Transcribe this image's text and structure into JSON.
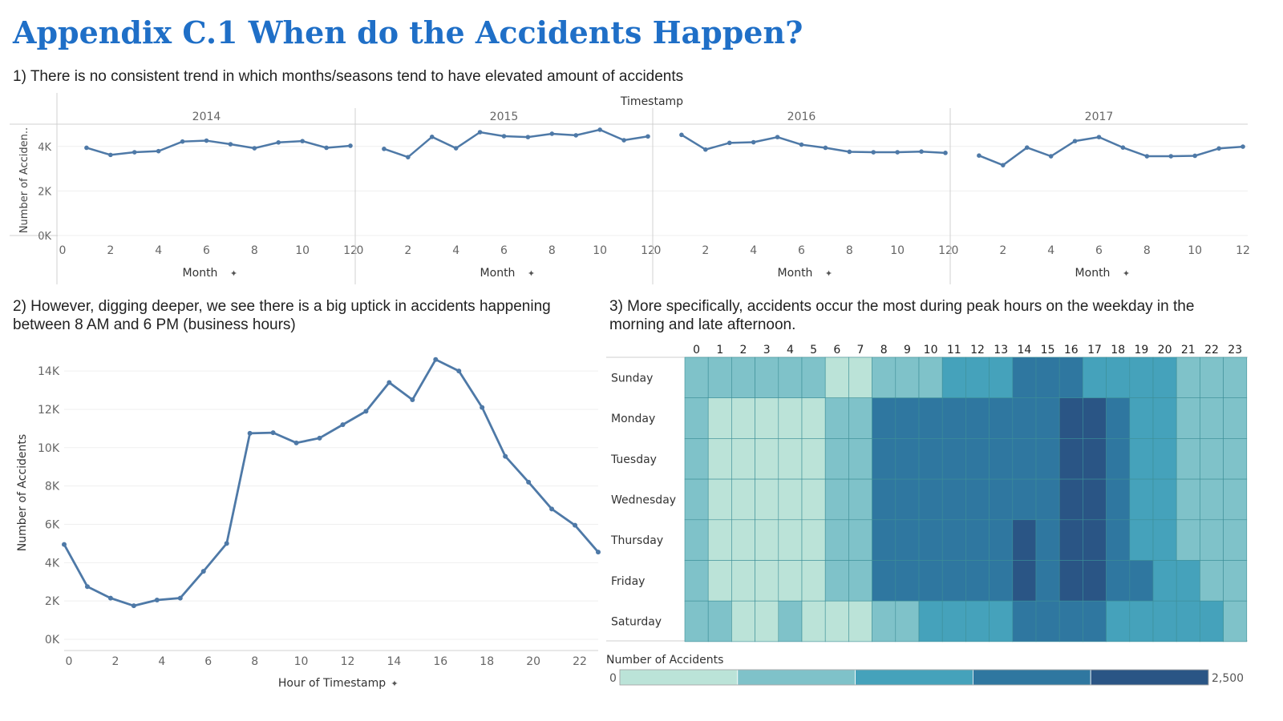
{
  "header": {
    "title": "Appendix C.1  When do the Accidents Happen?",
    "note1": "1) There is no consistent trend in which months/seasons tend to have elevated amount of accidents",
    "note2": "2) However, digging deeper, we see there is a big uptick in accidents happening between 8 AM and 6 PM (business hours)",
    "note3": "3) More specifically, accidents occur the most during peak hours on the weekday in the morning and late afternoon."
  },
  "colors": {
    "line": "#4e79a7",
    "title": "#1f6fc7",
    "heat": [
      "#bbe3d8",
      "#7fc2c9",
      "#45a2bb",
      "#2f77a0",
      "#2a5585"
    ]
  },
  "chart_data": [
    {
      "type": "line",
      "panel_header": "Timestamp",
      "ylabel": "Number of Acciden..",
      "xlabel": "Month",
      "pin": "📌",
      "yticks": [
        0,
        2000,
        4000
      ],
      "ytick_labels": [
        "0K",
        "2K",
        "4K"
      ],
      "xticks": [
        0,
        2,
        4,
        6,
        8,
        10,
        12
      ],
      "ylim": [
        0,
        5000
      ],
      "xlim": [
        0,
        12
      ],
      "grid": true,
      "series": [
        {
          "name": "2014",
          "x": [
            1,
            2,
            3,
            4,
            5,
            6,
            7,
            8,
            9,
            10,
            11,
            12
          ],
          "values": [
            3940,
            3620,
            3740,
            3790,
            4220,
            4260,
            4100,
            3920,
            4180,
            4240,
            3940,
            4030
          ]
        },
        {
          "name": "2015",
          "x": [
            1,
            2,
            3,
            4,
            5,
            6,
            7,
            8,
            9,
            10,
            11,
            12
          ],
          "values": [
            3890,
            3520,
            4430,
            3920,
            4640,
            4460,
            4420,
            4570,
            4500,
            4750,
            4280,
            4450
          ]
        },
        {
          "name": "2016",
          "x": [
            1,
            2,
            3,
            4,
            5,
            6,
            7,
            8,
            9,
            10,
            11,
            12
          ],
          "values": [
            4520,
            3860,
            4160,
            4190,
            4420,
            4080,
            3940,
            3760,
            3740,
            3740,
            3770,
            3710
          ]
        },
        {
          "name": "2017",
          "x": [
            1,
            2,
            3,
            4,
            5,
            6,
            7,
            8,
            9,
            10,
            11,
            12
          ],
          "values": [
            3590,
            3160,
            3950,
            3560,
            4240,
            4420,
            3950,
            3560,
            3560,
            3580,
            3910,
            3990
          ]
        }
      ]
    },
    {
      "type": "line",
      "xlabel": "Hour of Timestamp",
      "ylabel": "Number of Accidents",
      "pin": "📌",
      "x": [
        0,
        1,
        2,
        3,
        4,
        5,
        6,
        7,
        8,
        9,
        10,
        11,
        12,
        13,
        14,
        15,
        16,
        17,
        18,
        19,
        20,
        21,
        22,
        23
      ],
      "values": [
        4950,
        2750,
        2150,
        1750,
        2050,
        2150,
        3550,
        5000,
        10750,
        10780,
        10250,
        10500,
        11200,
        11900,
        13400,
        12500,
        14600,
        14000,
        12100,
        9550,
        8200,
        6800,
        5950,
        4550
      ],
      "xticks": [
        0,
        2,
        4,
        6,
        8,
        10,
        12,
        14,
        16,
        18,
        20,
        22
      ],
      "yticks": [
        0,
        2000,
        4000,
        6000,
        8000,
        10000,
        12000,
        14000
      ],
      "ytick_labels": [
        "0K",
        "2K",
        "4K",
        "6K",
        "8K",
        "10K",
        "12K",
        "14K"
      ],
      "xlim": [
        0,
        23
      ],
      "ylim": [
        0,
        14800
      ],
      "grid": true
    },
    {
      "type": "heatmap",
      "columns": [
        "0",
        "1",
        "2",
        "3",
        "4",
        "5",
        "6",
        "7",
        "8",
        "9",
        "10",
        "11",
        "12",
        "13",
        "14",
        "15",
        "16",
        "17",
        "18",
        "19",
        "20",
        "21",
        "22",
        "23"
      ],
      "rows": [
        "Sunday",
        "Monday",
        "Tuesday",
        "Wednesday",
        "Thursday",
        "Friday",
        "Saturday"
      ],
      "values": [
        [
          800,
          800,
          800,
          800,
          800,
          800,
          300,
          300,
          800,
          800,
          800,
          1300,
          1300,
          1300,
          1800,
          1800,
          1800,
          1300,
          1300,
          1300,
          1300,
          800,
          800,
          800
        ],
        [
          800,
          300,
          300,
          300,
          300,
          300,
          800,
          800,
          1800,
          1800,
          1800,
          1800,
          1800,
          1800,
          1800,
          1800,
          2300,
          2300,
          1800,
          1300,
          1300,
          800,
          800,
          800
        ],
        [
          800,
          300,
          300,
          300,
          300,
          300,
          800,
          800,
          1800,
          1800,
          1800,
          1800,
          1800,
          1800,
          1800,
          1800,
          2300,
          2300,
          1800,
          1300,
          1300,
          800,
          800,
          800
        ],
        [
          800,
          300,
          300,
          300,
          300,
          300,
          800,
          800,
          1800,
          1800,
          1800,
          1800,
          1800,
          1800,
          1800,
          1800,
          2300,
          2300,
          1800,
          1300,
          1300,
          800,
          800,
          800
        ],
        [
          800,
          300,
          300,
          300,
          300,
          300,
          800,
          800,
          1800,
          1800,
          1800,
          1800,
          1800,
          1800,
          2300,
          1800,
          2300,
          2300,
          1800,
          1300,
          1300,
          800,
          800,
          800
        ],
        [
          800,
          300,
          300,
          300,
          300,
          300,
          800,
          800,
          1800,
          1800,
          1800,
          1800,
          1800,
          1800,
          2300,
          1800,
          2300,
          2300,
          1800,
          1800,
          1300,
          1300,
          800,
          800
        ],
        [
          800,
          800,
          300,
          300,
          800,
          300,
          300,
          300,
          800,
          800,
          1300,
          1300,
          1300,
          1300,
          1800,
          1800,
          1800,
          1800,
          1300,
          1300,
          1300,
          1300,
          1300,
          800
        ]
      ],
      "legend": {
        "title": "Number of Accidents",
        "min_label": "0",
        "max_label": "2,500",
        "min": 0,
        "max": 2500,
        "steps": 5
      }
    }
  ]
}
